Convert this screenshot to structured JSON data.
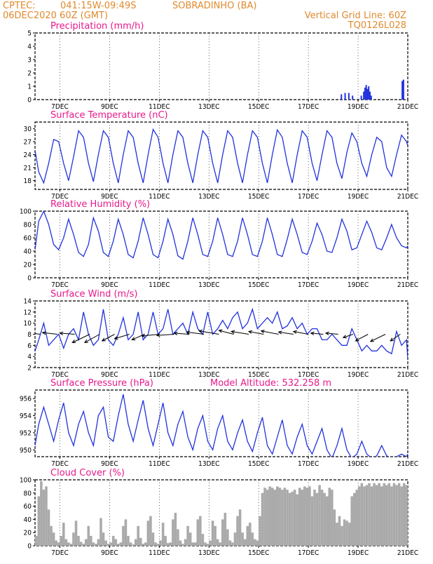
{
  "header": {
    "source": "CPTEC:",
    "location": "041:15W-09:49S",
    "station": "SOBRADINHO (BA)",
    "date": "06DEC2020 60Z (GMT)",
    "grid_note": "Vertical Grid Line: 60Z",
    "code": "TQ0126L028"
  },
  "colors": {
    "header": "#e08a2e",
    "title": "#e8198c",
    "series": "#2233dd",
    "cloud": "#aaaaaa"
  },
  "x_ticks": [
    "7DEC",
    "9DEC",
    "11DEC",
    "13DEC",
    "15DEC",
    "17DEC",
    "19DEC",
    "21DEC"
  ],
  "chart_data": [
    {
      "id": "precip",
      "type": "bar",
      "title": "Precipitation (mm/h)",
      "xlim": [
        6.0,
        21.0
      ],
      "ylim": [
        0,
        5
      ],
      "yticks": [
        0,
        1,
        2,
        3,
        4,
        5
      ],
      "x": [
        18.3,
        18.45,
        18.6,
        18.75,
        19.1,
        19.2,
        19.25,
        19.3,
        19.35,
        19.4,
        19.45,
        19.5,
        20.75,
        20.8
      ],
      "values": [
        0.4,
        0.5,
        0.5,
        0.3,
        0.3,
        0.6,
        0.9,
        1.1,
        0.8,
        1.0,
        0.6,
        0.3,
        1.4,
        1.5
      ]
    },
    {
      "id": "temp",
      "type": "line",
      "title": "Surface Temperature (nC)",
      "xlim": [
        6.0,
        21.0
      ],
      "ylim": [
        16,
        31.5
      ],
      "yticks": [
        18,
        21,
        24,
        27,
        30
      ],
      "x": [
        6.0,
        6.15,
        6.35,
        6.55,
        6.75,
        6.95,
        7.15,
        7.35,
        7.55,
        7.75,
        7.95,
        8.15,
        8.35,
        8.55,
        8.75,
        8.95,
        9.15,
        9.35,
        9.55,
        9.75,
        9.95,
        10.15,
        10.35,
        10.55,
        10.75,
        10.95,
        11.15,
        11.35,
        11.55,
        11.75,
        11.95,
        12.15,
        12.35,
        12.55,
        12.75,
        12.95,
        13.15,
        13.35,
        13.55,
        13.75,
        13.95,
        14.15,
        14.35,
        14.55,
        14.75,
        14.95,
        15.15,
        15.35,
        15.55,
        15.75,
        15.95,
        16.15,
        16.35,
        16.55,
        16.75,
        16.95,
        17.15,
        17.35,
        17.55,
        17.75,
        17.95,
        18.15,
        18.35,
        18.55,
        18.75,
        18.95,
        19.15,
        19.35,
        19.55,
        19.75,
        19.95,
        20.15,
        20.35,
        20.55,
        20.75,
        20.95,
        21.0
      ],
      "values": [
        25,
        20,
        17.5,
        22,
        27.5,
        27,
        22,
        18,
        23.5,
        29.5,
        28,
        22,
        17.8,
        24,
        29.5,
        28,
        22,
        17.5,
        24,
        29.5,
        28,
        22,
        17.5,
        24,
        29.8,
        28,
        22,
        17.5,
        24,
        29.5,
        28,
        22,
        17.5,
        24,
        29.5,
        28,
        22,
        17.5,
        24,
        29.5,
        28,
        22,
        17.5,
        24,
        29.5,
        28,
        22,
        17.5,
        24,
        29.7,
        28,
        22,
        17.5,
        24,
        29.5,
        28,
        22,
        18,
        24,
        29.5,
        28,
        22,
        18.5,
        24.5,
        29,
        27,
        22,
        19,
        24,
        28,
        27,
        21,
        19,
        24,
        28.5,
        27,
        26
      ]
    },
    {
      "id": "rh",
      "type": "line",
      "title": "Relative Humidity (%)",
      "xlim": [
        6.0,
        21.0
      ],
      "ylim": [
        0,
        100
      ],
      "yticks": [
        0,
        20,
        40,
        60,
        80,
        100
      ],
      "x": [
        6.0,
        6.15,
        6.35,
        6.55,
        6.75,
        6.95,
        7.15,
        7.35,
        7.55,
        7.75,
        7.95,
        8.15,
        8.35,
        8.55,
        8.75,
        8.95,
        9.15,
        9.35,
        9.55,
        9.75,
        9.95,
        10.15,
        10.35,
        10.55,
        10.75,
        10.95,
        11.15,
        11.35,
        11.55,
        11.75,
        11.95,
        12.15,
        12.35,
        12.55,
        12.75,
        12.95,
        13.15,
        13.35,
        13.55,
        13.75,
        13.95,
        14.15,
        14.35,
        14.55,
        14.75,
        14.95,
        15.15,
        15.35,
        15.55,
        15.75,
        15.95,
        16.15,
        16.35,
        16.55,
        16.75,
        16.95,
        17.15,
        17.35,
        17.55,
        17.75,
        17.95,
        18.15,
        18.35,
        18.55,
        18.75,
        18.95,
        19.15,
        19.35,
        19.55,
        19.75,
        19.95,
        20.15,
        20.35,
        20.55,
        20.75,
        20.95,
        21.0
      ],
      "values": [
        42,
        85,
        100,
        80,
        50,
        42,
        60,
        88,
        65,
        38,
        32,
        50,
        90,
        70,
        38,
        32,
        55,
        88,
        65,
        35,
        30,
        55,
        90,
        65,
        35,
        30,
        55,
        88,
        65,
        33,
        28,
        55,
        90,
        65,
        35,
        32,
        55,
        90,
        65,
        35,
        32,
        55,
        90,
        65,
        35,
        32,
        55,
        90,
        65,
        35,
        32,
        58,
        88,
        65,
        38,
        35,
        55,
        82,
        65,
        40,
        38,
        60,
        88,
        70,
        42,
        45,
        65,
        85,
        68,
        45,
        42,
        60,
        80,
        60,
        48,
        45,
        48
      ]
    },
    {
      "id": "wind",
      "type": "line",
      "title": "Surface Wind (m/s)",
      "xlim": [
        6.0,
        21.0
      ],
      "ylim": [
        2,
        14
      ],
      "yticks": [
        2,
        4,
        6,
        8,
        10,
        12,
        14
      ],
      "x": [
        6.0,
        6.15,
        6.35,
        6.55,
        6.75,
        6.95,
        7.15,
        7.35,
        7.55,
        7.75,
        7.95,
        8.15,
        8.35,
        8.55,
        8.75,
        8.95,
        9.15,
        9.35,
        9.55,
        9.75,
        9.95,
        10.15,
        10.35,
        10.55,
        10.75,
        10.95,
        11.15,
        11.35,
        11.55,
        11.75,
        11.95,
        12.15,
        12.35,
        12.55,
        12.75,
        12.95,
        13.15,
        13.35,
        13.55,
        13.75,
        13.95,
        14.15,
        14.35,
        14.55,
        14.75,
        14.95,
        15.15,
        15.35,
        15.55,
        15.75,
        15.95,
        16.15,
        16.35,
        16.55,
        16.75,
        16.95,
        17.15,
        17.35,
        17.55,
        17.75,
        17.95,
        18.15,
        18.35,
        18.55,
        18.75,
        18.95,
        19.15,
        19.35,
        19.55,
        19.75,
        19.95,
        20.15,
        20.35,
        20.55,
        20.75,
        20.95,
        21.0
      ],
      "values": [
        5,
        7,
        10,
        6,
        7,
        8,
        5.5,
        8,
        9,
        7,
        12,
        8,
        6,
        7,
        12.5,
        7,
        6,
        8,
        11,
        7,
        8,
        12,
        7,
        8,
        12,
        8,
        9,
        12.5,
        8,
        9,
        10,
        8,
        12,
        9,
        8,
        12,
        8,
        9,
        10.5,
        9,
        11,
        12,
        9,
        10,
        12.5,
        9,
        10,
        11,
        10,
        12,
        9,
        9.5,
        11,
        9,
        10,
        8,
        9,
        9,
        7,
        7,
        8,
        7,
        6,
        6,
        9,
        7,
        5,
        6,
        5,
        5,
        6,
        5,
        4.5,
        8.5,
        6,
        7,
        3.5
      ],
      "vectors": {
        "x": [
          6.2,
          6.9,
          7.6,
          8.2,
          8.6,
          9.2,
          9.8,
          10.4,
          11.0,
          11.6,
          12.2,
          12.8,
          13.4,
          14.0,
          14.6,
          15.2,
          15.8,
          16.4,
          17.0,
          17.6,
          18.2,
          18.8,
          19.4,
          20.1,
          20.7
        ],
        "dx": [
          -0.6,
          -0.6,
          -0.6,
          -0.7,
          -0.6,
          -0.5,
          -0.6,
          -0.5,
          -0.7,
          -0.7,
          -0.6,
          -0.7,
          -0.8,
          -0.6,
          -0.7,
          -0.6,
          -0.7,
          -0.6,
          -0.6,
          -0.5,
          -0.5,
          -0.4,
          -0.5,
          -0.6,
          -0.4
        ],
        "dy": [
          0.4,
          0.3,
          0.2,
          -1.5,
          -1.5,
          -1.2,
          -0.8,
          -1.0,
          -0.3,
          -0.2,
          0.2,
          0.4,
          0.6,
          0.7,
          0.5,
          0.5,
          0.6,
          0.4,
          0.5,
          0.2,
          0.2,
          -0.6,
          -1.2,
          -1.3,
          -1.2
        ]
      }
    },
    {
      "id": "pres",
      "type": "line",
      "title": "Surface Pressure (hPa)",
      "annotation": "Model Altitude: 532.258 m",
      "xlim": [
        6.0,
        21.0
      ],
      "ylim": [
        949.2,
        957
      ],
      "yticks": [
        950,
        952,
        954,
        956
      ],
      "x": [
        6.0,
        6.15,
        6.35,
        6.55,
        6.75,
        6.95,
        7.15,
        7.35,
        7.55,
        7.75,
        7.95,
        8.15,
        8.35,
        8.55,
        8.75,
        8.95,
        9.15,
        9.35,
        9.55,
        9.75,
        9.95,
        10.15,
        10.35,
        10.55,
        10.75,
        10.95,
        11.15,
        11.35,
        11.55,
        11.75,
        11.95,
        12.15,
        12.35,
        12.55,
        12.75,
        12.95,
        13.15,
        13.35,
        13.55,
        13.75,
        13.95,
        14.15,
        14.35,
        14.55,
        14.75,
        14.95,
        15.15,
        15.35,
        15.55,
        15.75,
        15.95,
        16.15,
        16.35,
        16.55,
        16.75,
        16.95,
        17.15,
        17.35,
        17.55,
        17.75,
        17.95,
        18.15,
        18.35,
        18.55,
        18.75,
        18.95,
        19.15,
        19.35,
        19.55,
        19.75,
        19.95,
        20.15,
        20.35,
        20.55,
        20.75,
        20.95,
        21.0
      ],
      "values": [
        950.5,
        953,
        955,
        953,
        951,
        953.5,
        955.5,
        952,
        950.5,
        953,
        954.5,
        952,
        950.5,
        954,
        955,
        951.5,
        951,
        954,
        956.5,
        953,
        951,
        953.5,
        955.8,
        952.5,
        950.5,
        953,
        955.5,
        952,
        950.5,
        953,
        954.5,
        951.5,
        950,
        952.5,
        954,
        951,
        950,
        952.5,
        954,
        951,
        950,
        952,
        953.5,
        951,
        949.8,
        952,
        953.8,
        950.5,
        949.5,
        951.5,
        953.5,
        950.5,
        949.5,
        951.5,
        953,
        950.5,
        949.5,
        951,
        952.5,
        950,
        949,
        950.5,
        952.5,
        950,
        949,
        949.5,
        951,
        949.5,
        949,
        949.3,
        950.5,
        949.3,
        949,
        949.2,
        949.5,
        949.2,
        949.5
      ]
    },
    {
      "id": "cloud",
      "type": "bar",
      "title": "Cloud Cover (%)",
      "xlim": [
        6.0,
        21.0
      ],
      "ylim": [
        0,
        100
      ],
      "yticks": [
        0,
        20,
        40,
        60,
        80,
        100
      ],
      "x": [
        6.0,
        6.1,
        6.2,
        6.3,
        6.4,
        6.5,
        6.6,
        6.7,
        6.8,
        6.9,
        7.0,
        7.1,
        7.2,
        7.3,
        7.4,
        7.5,
        7.6,
        7.7,
        7.8,
        7.9,
        8.0,
        8.1,
        8.2,
        8.3,
        8.4,
        8.5,
        8.6,
        8.7,
        8.8,
        8.9,
        9.0,
        9.1,
        9.2,
        9.3,
        9.4,
        9.5,
        9.6,
        9.7,
        9.8,
        9.9,
        10.0,
        10.1,
        10.2,
        10.3,
        10.4,
        10.5,
        10.6,
        10.7,
        10.8,
        10.9,
        11.0,
        11.1,
        11.2,
        11.3,
        11.4,
        11.5,
        11.6,
        11.7,
        11.8,
        11.9,
        12.0,
        12.1,
        12.2,
        12.3,
        12.4,
        12.5,
        12.6,
        12.7,
        12.8,
        12.9,
        13.0,
        13.1,
        13.2,
        13.3,
        13.4,
        13.5,
        13.6,
        13.7,
        13.8,
        13.9,
        14.0,
        14.1,
        14.2,
        14.3,
        14.4,
        14.5,
        14.6,
        14.7,
        14.8,
        14.9,
        15.0,
        15.1,
        15.2,
        15.3,
        15.4,
        15.5,
        15.6,
        15.7,
        15.8,
        15.9,
        16.0,
        16.1,
        16.2,
        16.3,
        16.4,
        16.5,
        16.6,
        16.7,
        16.8,
        16.9,
        17.0,
        17.1,
        17.2,
        17.3,
        17.4,
        17.5,
        17.6,
        17.7,
        17.8,
        17.9,
        18.0,
        18.1,
        18.2,
        18.3,
        18.4,
        18.5,
        18.6,
        18.7,
        18.8,
        18.9,
        19.0,
        19.1,
        19.2,
        19.3,
        19.4,
        19.5,
        19.6,
        19.7,
        19.8,
        19.9,
        20.0,
        20.1,
        20.2,
        20.3,
        20.4,
        20.5,
        20.6,
        20.7,
        20.8,
        20.9
      ],
      "values": [
        15,
        75,
        98,
        85,
        90,
        55,
        30,
        20,
        8,
        5,
        15,
        35,
        10,
        5,
        3,
        20,
        38,
        15,
        6,
        3,
        10,
        30,
        15,
        5,
        3,
        10,
        42,
        20,
        8,
        3,
        5,
        15,
        10,
        3,
        5,
        30,
        40,
        15,
        5,
        2,
        10,
        30,
        12,
        3,
        5,
        38,
        45,
        20,
        5,
        3,
        8,
        35,
        15,
        4,
        5,
        40,
        50,
        25,
        8,
        3,
        10,
        30,
        20,
        5,
        5,
        40,
        45,
        18,
        5,
        3,
        8,
        38,
        30,
        10,
        5,
        40,
        50,
        25,
        8,
        5,
        20,
        45,
        55,
        20,
        10,
        30,
        35,
        20,
        10,
        8,
        45,
        80,
        88,
        85,
        90,
        88,
        85,
        90,
        88,
        85,
        88,
        85,
        80,
        82,
        85,
        78,
        88,
        85,
        90,
        88,
        90,
        75,
        85,
        80,
        92,
        85,
        80,
        75,
        88,
        85,
        55,
        35,
        45,
        30,
        40,
        38,
        35,
        75,
        80,
        85,
        90,
        95,
        90,
        92,
        95,
        90,
        95,
        92,
        95,
        90,
        95,
        92,
        95,
        90,
        95,
        92,
        95,
        90,
        95,
        92
      ]
    }
  ]
}
